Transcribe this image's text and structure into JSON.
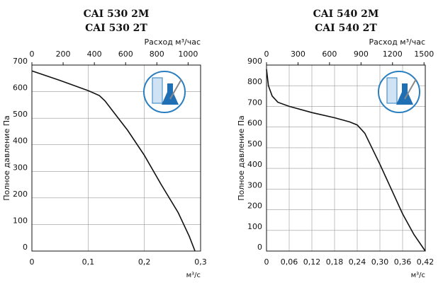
{
  "chart_data": [
    {
      "type": "line",
      "title": "CAI 530 2M",
      "subtitle": "CAI 530 2T",
      "x2_label": "Расход м³/час",
      "x_label": "м³/с",
      "y_label": "Полное давление Па",
      "x": [
        0,
        0.05,
        0.1,
        0.12,
        0.13,
        0.15,
        0.17,
        0.2,
        0.23,
        0.26,
        0.28,
        0.29
      ],
      "values": [
        678,
        642,
        604,
        585,
        565,
        510,
        455,
        360,
        250,
        145,
        55,
        0
      ],
      "color": "#111111",
      "xlim": [
        0,
        0.3
      ],
      "xticks": [
        0,
        {
          "value": 0.1,
          "label": "0,1"
        },
        {
          "value": 0.2,
          "label": "0,2"
        },
        {
          "value": 0.3,
          "label": "0,3"
        }
      ],
      "x2lim": [
        0,
        1080
      ],
      "x2ticks": [
        0,
        200,
        400,
        600,
        800,
        1000
      ],
      "ylim": [
        0,
        700
      ],
      "yticks": [
        0,
        100,
        200,
        300,
        400,
        500,
        600,
        700
      ],
      "grid": true
    },
    {
      "type": "line",
      "title": "CAI 540 2M",
      "subtitle": "CAI 540 2T",
      "x2_label": "Расход м³/час",
      "x_label": "м³/с",
      "y_label": "Полное давление Па",
      "x": [
        0,
        0.005,
        0.015,
        0.03,
        0.06,
        0.12,
        0.18,
        0.22,
        0.24,
        0.26,
        0.3,
        0.33,
        0.36,
        0.39,
        0.42
      ],
      "values": [
        880,
        800,
        750,
        720,
        700,
        670,
        645,
        625,
        610,
        570,
        420,
        300,
        180,
        80,
        0
      ],
      "color": "#111111",
      "xlim": [
        0,
        0.42
      ],
      "xticks": [
        0,
        {
          "value": 0.06,
          "label": "0,06"
        },
        {
          "value": 0.12,
          "label": "0,12"
        },
        {
          "value": 0.18,
          "label": "0,18"
        },
        {
          "value": 0.24,
          "label": "0,24"
        },
        {
          "value": 0.3,
          "label": "0,30"
        },
        {
          "value": 0.36,
          "label": "0,36"
        },
        {
          "value": 0.42,
          "label": "0,42"
        }
      ],
      "x2lim": [
        0,
        1512
      ],
      "x2ticks": [
        0,
        300,
        600,
        900,
        1200,
        1500
      ],
      "ylim": [
        0,
        900
      ],
      "yticks": [
        0,
        100,
        200,
        300,
        400,
        500,
        600,
        700,
        800,
        900
      ],
      "grid": true
    }
  ]
}
